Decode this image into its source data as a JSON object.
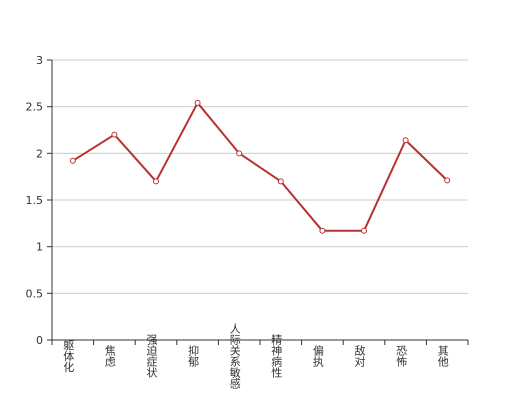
{
  "chart_data": {
    "type": "line",
    "categories": [
      "躯体化",
      "焦虑",
      "强迫症状",
      "抑郁",
      "人际关系敏感",
      "精神病性",
      "偏执",
      "敌对",
      "恐怖",
      "其他"
    ],
    "series": [
      {
        "values": [
          1.92,
          2.2,
          1.7,
          2.54,
          2.0,
          1.7,
          1.17,
          1.17,
          2.14,
          1.71
        ]
      }
    ],
    "title": "",
    "xlabel": "",
    "ylabel": "",
    "ylim": [
      0,
      3
    ],
    "yticks": [
      "0",
      "0.5",
      "1",
      "1.5",
      "2",
      "2.5",
      "3"
    ],
    "grid": true,
    "colors": {
      "line": "#b83232",
      "marker_fill": "#ffffff",
      "grid": "#cccccc",
      "axis": "#333333"
    }
  }
}
